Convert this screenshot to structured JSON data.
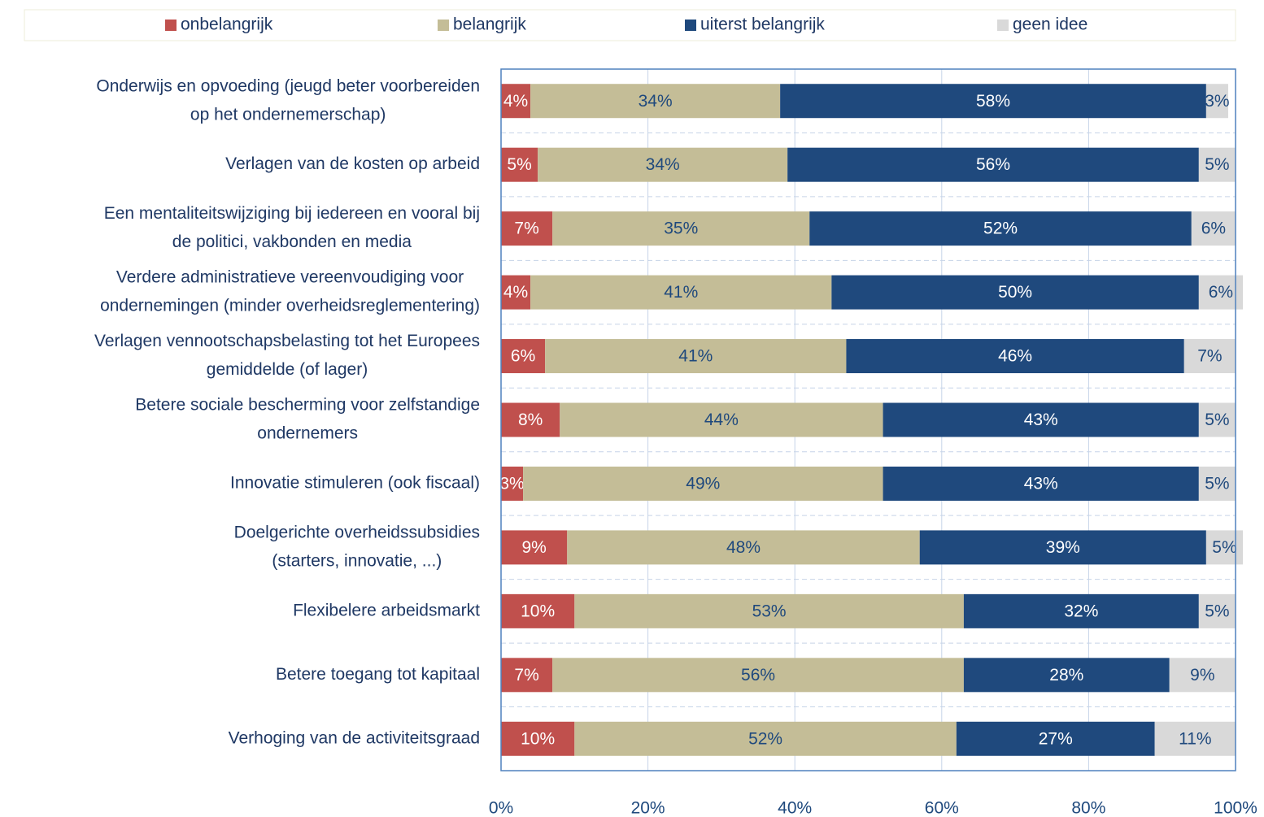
{
  "chart_data": {
    "type": "stacked_bar_horizontal",
    "categories": [
      [
        "Onderwijs en opvoeding  (jeugd beter voorbereiden",
        "op het  ondernemerschap)"
      ],
      [
        "Verlagen van de kosten  op arbeid"
      ],
      [
        "Een mentaliteitswijziging bij iedereen en vooral bij",
        "de politici, vakbonden  en media"
      ],
      [
        "Verdere administratieve vereenvoudiging voor",
        "ondernemingen (minder  overheidsreglementering)"
      ],
      [
        "Verlagen vennootschapsbelasting  tot het  Europees",
        "gemiddelde (of lager)"
      ],
      [
        "Betere sociale bescherming voor zelfstandige",
        "ondernemers"
      ],
      [
        "Innovatie stimuleren (ook fiscaal)"
      ],
      [
        "Doelgerichte overheidssubsidies",
        "(starters, innovatie, ...)"
      ],
      [
        "Flexibelere arbeidsmarkt"
      ],
      [
        "Betere toegang tot kapitaal"
      ],
      [
        "Verhoging van de activiteitsgraad"
      ]
    ],
    "series": [
      {
        "name": "onbelangrijk",
        "color": "#c0504d",
        "label_color": "#ffffff",
        "values": [
          4,
          5,
          7,
          4,
          6,
          8,
          3,
          9,
          10,
          7,
          10
        ],
        "value_labels": [
          "4%",
          "5%",
          "7%",
          "4%",
          "6%",
          "8%",
          "3%",
          "9%",
          "10%",
          "7%",
          "10%"
        ]
      },
      {
        "name": "belangrijk",
        "color": "#c4bd97",
        "label_color": "#1f497d",
        "values": [
          34,
          34,
          35,
          41,
          41,
          44,
          49,
          48,
          53,
          56,
          52
        ],
        "value_labels": [
          "34%",
          "34%",
          "35%",
          "41%",
          "41%",
          "44%",
          "49%",
          "48%",
          "53%",
          "56%",
          "52%"
        ]
      },
      {
        "name": "uiterst belangrijk",
        "color": "#1f497d",
        "label_color": "#ffffff",
        "values": [
          58,
          56,
          52,
          50,
          46,
          43,
          43,
          39,
          32,
          28,
          27
        ],
        "value_labels": [
          "58%",
          "56%",
          "52%",
          "50%",
          "46%",
          "43%",
          "43%",
          "39%",
          "32%",
          "28%",
          "27%"
        ]
      },
      {
        "name": "geen idee",
        "color": "#d9d9d9",
        "label_color": "#1f497d",
        "values": [
          3,
          5,
          6,
          6,
          7,
          5,
          5,
          5,
          5,
          9,
          11
        ],
        "value_labels": [
          "3%",
          "5%",
          "6%",
          "6%",
          "7%",
          "5%",
          "5%",
          "5%",
          "5%",
          "9%",
          "11%"
        ]
      }
    ],
    "xlim": [
      0,
      100
    ],
    "xticks": [
      {
        "value": 0,
        "label": "0%"
      },
      {
        "value": 20,
        "label": "20%"
      },
      {
        "value": 40,
        "label": "40%"
      },
      {
        "value": 60,
        "label": "60%"
      },
      {
        "value": 80,
        "label": "80%"
      },
      {
        "value": 100,
        "label": "100%"
      }
    ],
    "grid": true,
    "legend": "top"
  }
}
